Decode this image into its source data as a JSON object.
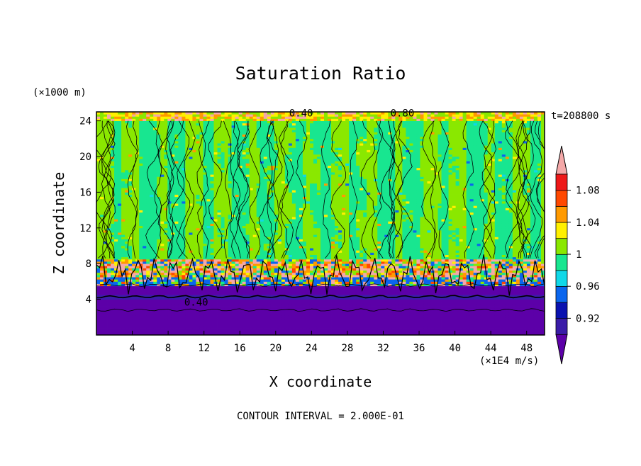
{
  "chart_data": {
    "type": "heatmap",
    "title": "Saturation Ratio",
    "xlabel": "X coordinate",
    "ylabel": "Z coordinate",
    "x_unit": "(×1E4 m/s)",
    "y_unit": "(×1000 m)",
    "time_label": "t=208800 s",
    "footer": "CONTOUR INTERVAL = 2.000E-01",
    "xlim": [
      0,
      50
    ],
    "ylim": [
      0,
      25
    ],
    "x_ticks": [
      "4",
      "8",
      "12",
      "16",
      "20",
      "24",
      "28",
      "32",
      "36",
      "40",
      "44",
      "48"
    ],
    "y_ticks": [
      "4",
      "8",
      "12",
      "16",
      "20",
      "24"
    ],
    "contour_labels": [
      "0.40",
      "0.40",
      "0.80"
    ],
    "colorbar": {
      "levels": [
        {
          "label": "",
          "color": "#5c00a8"
        },
        {
          "label": "0.92",
          "color": "#3a1ca8"
        },
        {
          "label": "",
          "color": "#0a12b0"
        },
        {
          "label": "0.96",
          "color": "#0a66ee"
        },
        {
          "label": "",
          "color": "#10d8e8"
        },
        {
          "label": "1",
          "color": "#18e690"
        },
        {
          "label": "",
          "color": "#8ae800"
        },
        {
          "label": "1.04",
          "color": "#fff000"
        },
        {
          "label": "",
          "color": "#ff9a00"
        },
        {
          "label": "1.08",
          "color": "#ff4800"
        },
        {
          "label": "",
          "color": "#ee1818"
        },
        {
          "label": "",
          "color": "#f4a8a8"
        }
      ]
    }
  }
}
